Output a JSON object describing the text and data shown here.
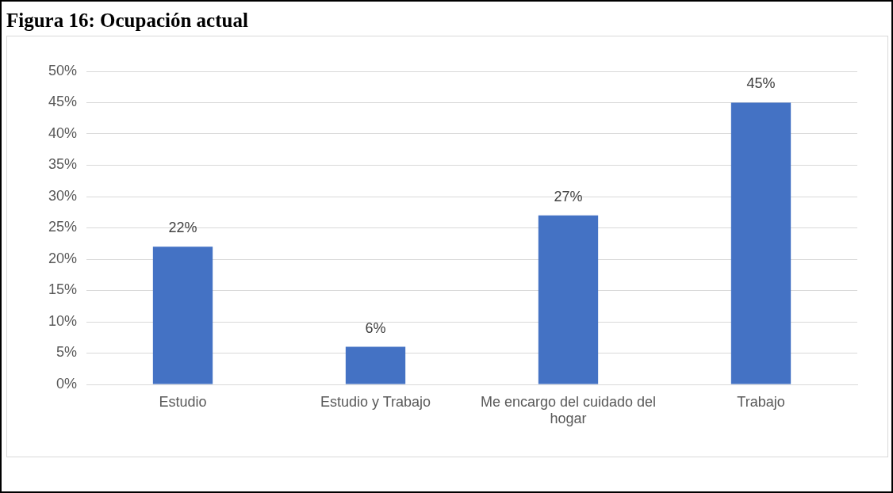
{
  "chart_data": {
    "type": "bar",
    "title": "Figura 16: Ocupación actual",
    "categories": [
      "Estudio",
      "Estudio y Trabajo",
      "Me encargo del cuidado del hogar",
      "Trabajo"
    ],
    "values": [
      22,
      6,
      27,
      45
    ],
    "value_labels": [
      "22%",
      "6%",
      "27%",
      "45%"
    ],
    "color": "#4472c4",
    "ylim": [
      0,
      50
    ],
    "yticks": [
      {
        "value": 0,
        "label": "0%"
      },
      {
        "value": 5,
        "label": "5%"
      },
      {
        "value": 10,
        "label": "10%"
      },
      {
        "value": 15,
        "label": "15%"
      },
      {
        "value": 20,
        "label": "20%"
      },
      {
        "value": 25,
        "label": "25%"
      },
      {
        "value": 30,
        "label": "30%"
      },
      {
        "value": 35,
        "label": "35%"
      },
      {
        "value": 40,
        "label": "40%"
      },
      {
        "value": 45,
        "label": "45%"
      },
      {
        "value": 50,
        "label": "50%"
      }
    ],
    "grid": "y",
    "legend": false
  }
}
